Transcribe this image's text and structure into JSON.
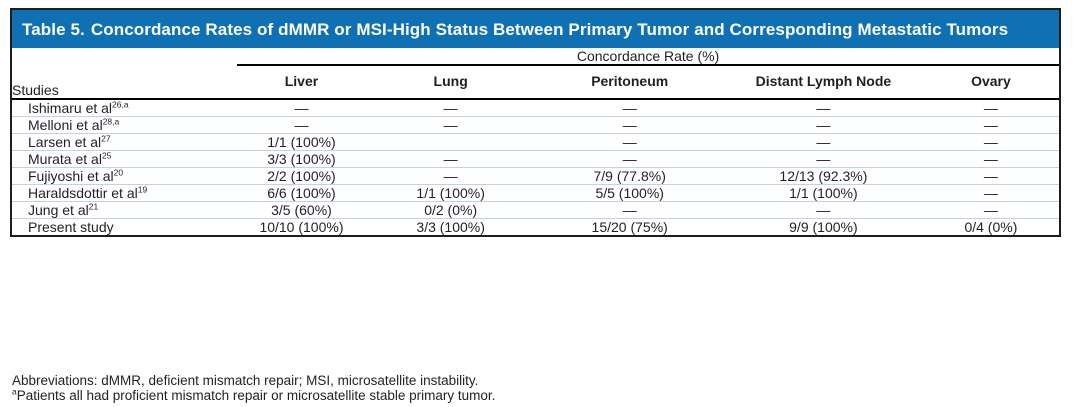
{
  "colors": {
    "header_bg": "#0f71b4",
    "header_text": "#ffffff",
    "body_text": "#231f20",
    "row_divider": "#bdd3e8",
    "border_color": "#1d1d1b"
  },
  "header": {
    "label": "Table 5.",
    "title": "Concordance Rates of dMMR or MSI-High Status Between Primary Tumor and Corresponding Metastatic Tumors"
  },
  "table": {
    "studies_header": "Studies",
    "spanner_header": "Concordance Rate (%)",
    "columns": [
      "Liver",
      "Lung",
      "Peritoneum",
      "Distant Lymph Node",
      "Ovary"
    ],
    "column_widths": [
      "21.5%",
      "12.3%",
      "16.2%",
      "18%",
      "19%",
      "13%"
    ],
    "rows": [
      {
        "study": "Ishimaru et al",
        "sup": "26,a",
        "values": [
          "—",
          "—",
          "—",
          "—",
          "—"
        ]
      },
      {
        "study": "Melloni et al",
        "sup": "28,a",
        "values": [
          "—",
          "—",
          "—",
          "—",
          "—"
        ]
      },
      {
        "study": "Larsen et al",
        "sup": "27",
        "values": [
          "1/1 (100%)",
          "",
          "—",
          "—",
          "—"
        ]
      },
      {
        "study": "Murata et al",
        "sup": "25",
        "values": [
          "3/3 (100%)",
          "—",
          "—",
          "—",
          "—"
        ]
      },
      {
        "study": "Fujiyoshi et al",
        "sup": "20",
        "values": [
          "2/2 (100%)",
          "—",
          "7/9 (77.8%)",
          "12/13 (92.3%)",
          "—"
        ]
      },
      {
        "study": "Haraldsdottir et al",
        "sup": "19",
        "values": [
          "6/6 (100%)",
          "1/1 (100%)",
          "5/5 (100%)",
          "1/1 (100%)",
          "—"
        ]
      },
      {
        "study": "Jung et al",
        "sup": "21",
        "values": [
          "3/5 (60%)",
          "0/2 (0%)",
          "—",
          "—",
          "—"
        ]
      },
      {
        "study": "Present study",
        "sup": "",
        "values": [
          "10/10 (100%)",
          "3/3 (100%)",
          "15/20 (75%)",
          "9/9 (100%)",
          "0/4 (0%)"
        ]
      }
    ]
  },
  "footnotes": {
    "abbreviations": "Abbreviations: dMMR, deficient mismatch repair; MSI, microsatellite instability.",
    "a_marker": "a",
    "a_text": "Patients all had proficient mismatch repair or microsatellite stable primary tumor."
  }
}
